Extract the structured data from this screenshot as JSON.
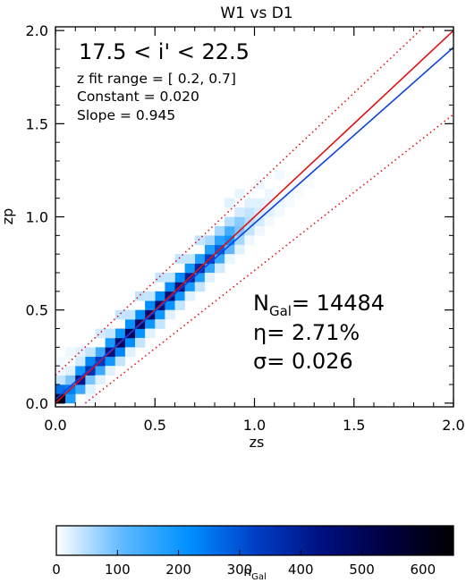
{
  "chart_data": {
    "type": "heatmap",
    "title": "W1 vs D1",
    "xlabel": "zs",
    "ylabel": "zp",
    "xlim": [
      0.0,
      2.0
    ],
    "ylim": [
      -0.02,
      2.02
    ],
    "xticks": [
      "0.0",
      "0.5",
      "1.0",
      "1.5",
      "2.0"
    ],
    "yticks": [
      "0.0",
      "0.5",
      "1.0",
      "1.5",
      "2.0"
    ],
    "annotations": {
      "range": "17.5 < i' < 22.5",
      "fit_range": "z fit range = [ 0.2, 0.7]",
      "constant": "Constant = 0.020",
      "slope": "Slope = 0.945"
    },
    "stats": {
      "ngal_label": "N",
      "ngal_sub": "Gal",
      "ngal_value": "= 14484",
      "eta": "η= 2.71%",
      "sigma": "σ= 0.026"
    },
    "lines": {
      "identity": {
        "color": "#e01010",
        "x": [
          0.0,
          2.0
        ],
        "y": [
          0.0,
          2.0
        ]
      },
      "fit": {
        "color": "#1040e0",
        "constant": 0.02,
        "slope": 0.945
      },
      "outlier_bounds": {
        "color": "#e01010",
        "style": "dotted",
        "offset": 0.15,
        "factor": 1.0
      }
    },
    "bins": {
      "size": 0.05,
      "cells": [
        [
          0.0,
          0.0,
          600
        ],
        [
          0.0,
          0.05,
          260
        ],
        [
          0.0,
          0.1,
          40
        ],
        [
          0.05,
          0.0,
          180
        ],
        [
          0.05,
          0.05,
          240
        ],
        [
          0.05,
          0.1,
          90
        ],
        [
          0.05,
          0.15,
          20
        ],
        [
          0.1,
          0.05,
          150
        ],
        [
          0.1,
          0.1,
          420
        ],
        [
          0.1,
          0.15,
          200
        ],
        [
          0.1,
          0.2,
          30
        ],
        [
          0.15,
          0.1,
          90
        ],
        [
          0.15,
          0.15,
          360
        ],
        [
          0.15,
          0.2,
          230
        ],
        [
          0.15,
          0.05,
          20
        ],
        [
          0.2,
          0.15,
          150
        ],
        [
          0.2,
          0.2,
          340
        ],
        [
          0.2,
          0.25,
          150
        ],
        [
          0.25,
          0.2,
          200
        ],
        [
          0.25,
          0.25,
          430
        ],
        [
          0.25,
          0.3,
          190
        ],
        [
          0.3,
          0.25,
          230
        ],
        [
          0.3,
          0.3,
          480
        ],
        [
          0.3,
          0.35,
          200
        ],
        [
          0.35,
          0.3,
          220
        ],
        [
          0.35,
          0.35,
          500
        ],
        [
          0.35,
          0.4,
          210
        ],
        [
          0.4,
          0.35,
          210
        ],
        [
          0.4,
          0.4,
          480
        ],
        [
          0.4,
          0.45,
          220
        ],
        [
          0.45,
          0.4,
          200
        ],
        [
          0.45,
          0.45,
          470
        ],
        [
          0.45,
          0.5,
          220
        ],
        [
          0.5,
          0.45,
          200
        ],
        [
          0.5,
          0.5,
          460
        ],
        [
          0.5,
          0.55,
          220
        ],
        [
          0.55,
          0.5,
          210
        ],
        [
          0.55,
          0.55,
          450
        ],
        [
          0.55,
          0.6,
          220
        ],
        [
          0.6,
          0.55,
          200
        ],
        [
          0.6,
          0.6,
          430
        ],
        [
          0.6,
          0.65,
          220
        ],
        [
          0.65,
          0.6,
          190
        ],
        [
          0.65,
          0.65,
          400
        ],
        [
          0.65,
          0.7,
          200
        ],
        [
          0.7,
          0.65,
          180
        ],
        [
          0.7,
          0.7,
          380
        ],
        [
          0.7,
          0.75,
          180
        ],
        [
          0.75,
          0.7,
          160
        ],
        [
          0.75,
          0.75,
          330
        ],
        [
          0.75,
          0.8,
          180
        ],
        [
          0.75,
          0.85,
          60
        ],
        [
          0.8,
          0.75,
          150
        ],
        [
          0.8,
          0.8,
          280
        ],
        [
          0.8,
          0.85,
          170
        ],
        [
          0.8,
          0.9,
          60
        ],
        [
          0.85,
          0.8,
          110
        ],
        [
          0.85,
          0.85,
          210
        ],
        [
          0.85,
          0.9,
          140
        ],
        [
          0.85,
          0.95,
          50
        ],
        [
          0.9,
          0.85,
          60
        ],
        [
          0.9,
          0.9,
          90
        ],
        [
          0.9,
          0.95,
          80
        ],
        [
          0.9,
          1.0,
          30
        ],
        [
          0.95,
          0.9,
          40
        ],
        [
          0.95,
          0.95,
          50
        ],
        [
          0.95,
          1.0,
          40
        ],
        [
          1.0,
          0.95,
          30
        ],
        [
          1.0,
          1.0,
          25
        ],
        [
          1.0,
          1.05,
          20
        ],
        [
          1.05,
          1.0,
          20
        ],
        [
          1.05,
          1.05,
          15
        ],
        [
          1.1,
          1.05,
          15
        ],
        [
          1.15,
          1.1,
          10
        ],
        [
          1.2,
          1.15,
          8
        ],
        [
          1.25,
          1.2,
          6
        ],
        [
          1.3,
          1.25,
          4
        ],
        [
          0.9,
          1.1,
          15
        ],
        [
          1.0,
          1.15,
          12
        ],
        [
          1.1,
          1.2,
          8
        ],
        [
          0.85,
          1.05,
          20
        ],
        [
          0.7,
          0.85,
          40
        ],
        [
          0.6,
          0.75,
          40
        ],
        [
          0.5,
          0.65,
          40
        ],
        [
          0.4,
          0.55,
          40
        ],
        [
          0.3,
          0.45,
          40
        ],
        [
          0.2,
          0.35,
          30
        ],
        [
          0.1,
          0.25,
          20
        ],
        [
          0.0,
          0.15,
          10
        ],
        [
          0.0,
          0.2,
          8
        ],
        [
          0.05,
          0.25,
          10
        ],
        [
          0.15,
          0.25,
          40
        ],
        [
          0.25,
          0.35,
          40
        ],
        [
          0.35,
          0.45,
          40
        ],
        [
          0.45,
          0.55,
          40
        ],
        [
          0.55,
          0.65,
          40
        ],
        [
          0.65,
          0.75,
          40
        ],
        [
          0.3,
          0.2,
          40
        ],
        [
          0.4,
          0.3,
          40
        ],
        [
          0.5,
          0.4,
          40
        ],
        [
          0.6,
          0.5,
          40
        ],
        [
          0.7,
          0.6,
          40
        ],
        [
          0.8,
          0.7,
          30
        ],
        [
          0.9,
          0.8,
          20
        ],
        [
          1.0,
          0.9,
          10
        ],
        [
          0.15,
          0.0,
          10
        ],
        [
          0.2,
          0.1,
          20
        ],
        [
          0.25,
          0.15,
          20
        ],
        [
          0.35,
          0.25,
          20
        ],
        [
          0.45,
          0.35,
          20
        ],
        [
          0.55,
          0.45,
          20
        ],
        [
          0.65,
          0.55,
          20
        ],
        [
          0.75,
          0.65,
          20
        ],
        [
          0.85,
          0.75,
          15
        ],
        [
          0.95,
          0.85,
          10
        ],
        [
          1.05,
          0.95,
          8
        ],
        [
          1.1,
          1.0,
          8
        ],
        [
          1.15,
          1.05,
          6
        ],
        [
          1.2,
          1.1,
          5
        ],
        [
          1.25,
          1.15,
          4
        ],
        [
          1.05,
          1.1,
          10
        ],
        [
          1.15,
          1.15,
          6
        ],
        [
          1.2,
          1.2,
          4
        ],
        [
          1.3,
          1.3,
          3
        ],
        [
          0.95,
          1.05,
          20
        ]
      ]
    },
    "colorbar": {
      "label": "n",
      "label_sub": "Gal",
      "range": [
        0,
        650
      ],
      "ticks": [
        "0",
        "100",
        "200",
        "300",
        "400",
        "500",
        "600"
      ],
      "tick_values": [
        0,
        100,
        200,
        300,
        400,
        500,
        600
      ],
      "colors": [
        "#ffffff",
        "#5fb8ff",
        "#0090ff",
        "#0040c8",
        "#001080",
        "#000040",
        "#000000"
      ]
    },
    "grid": false
  }
}
